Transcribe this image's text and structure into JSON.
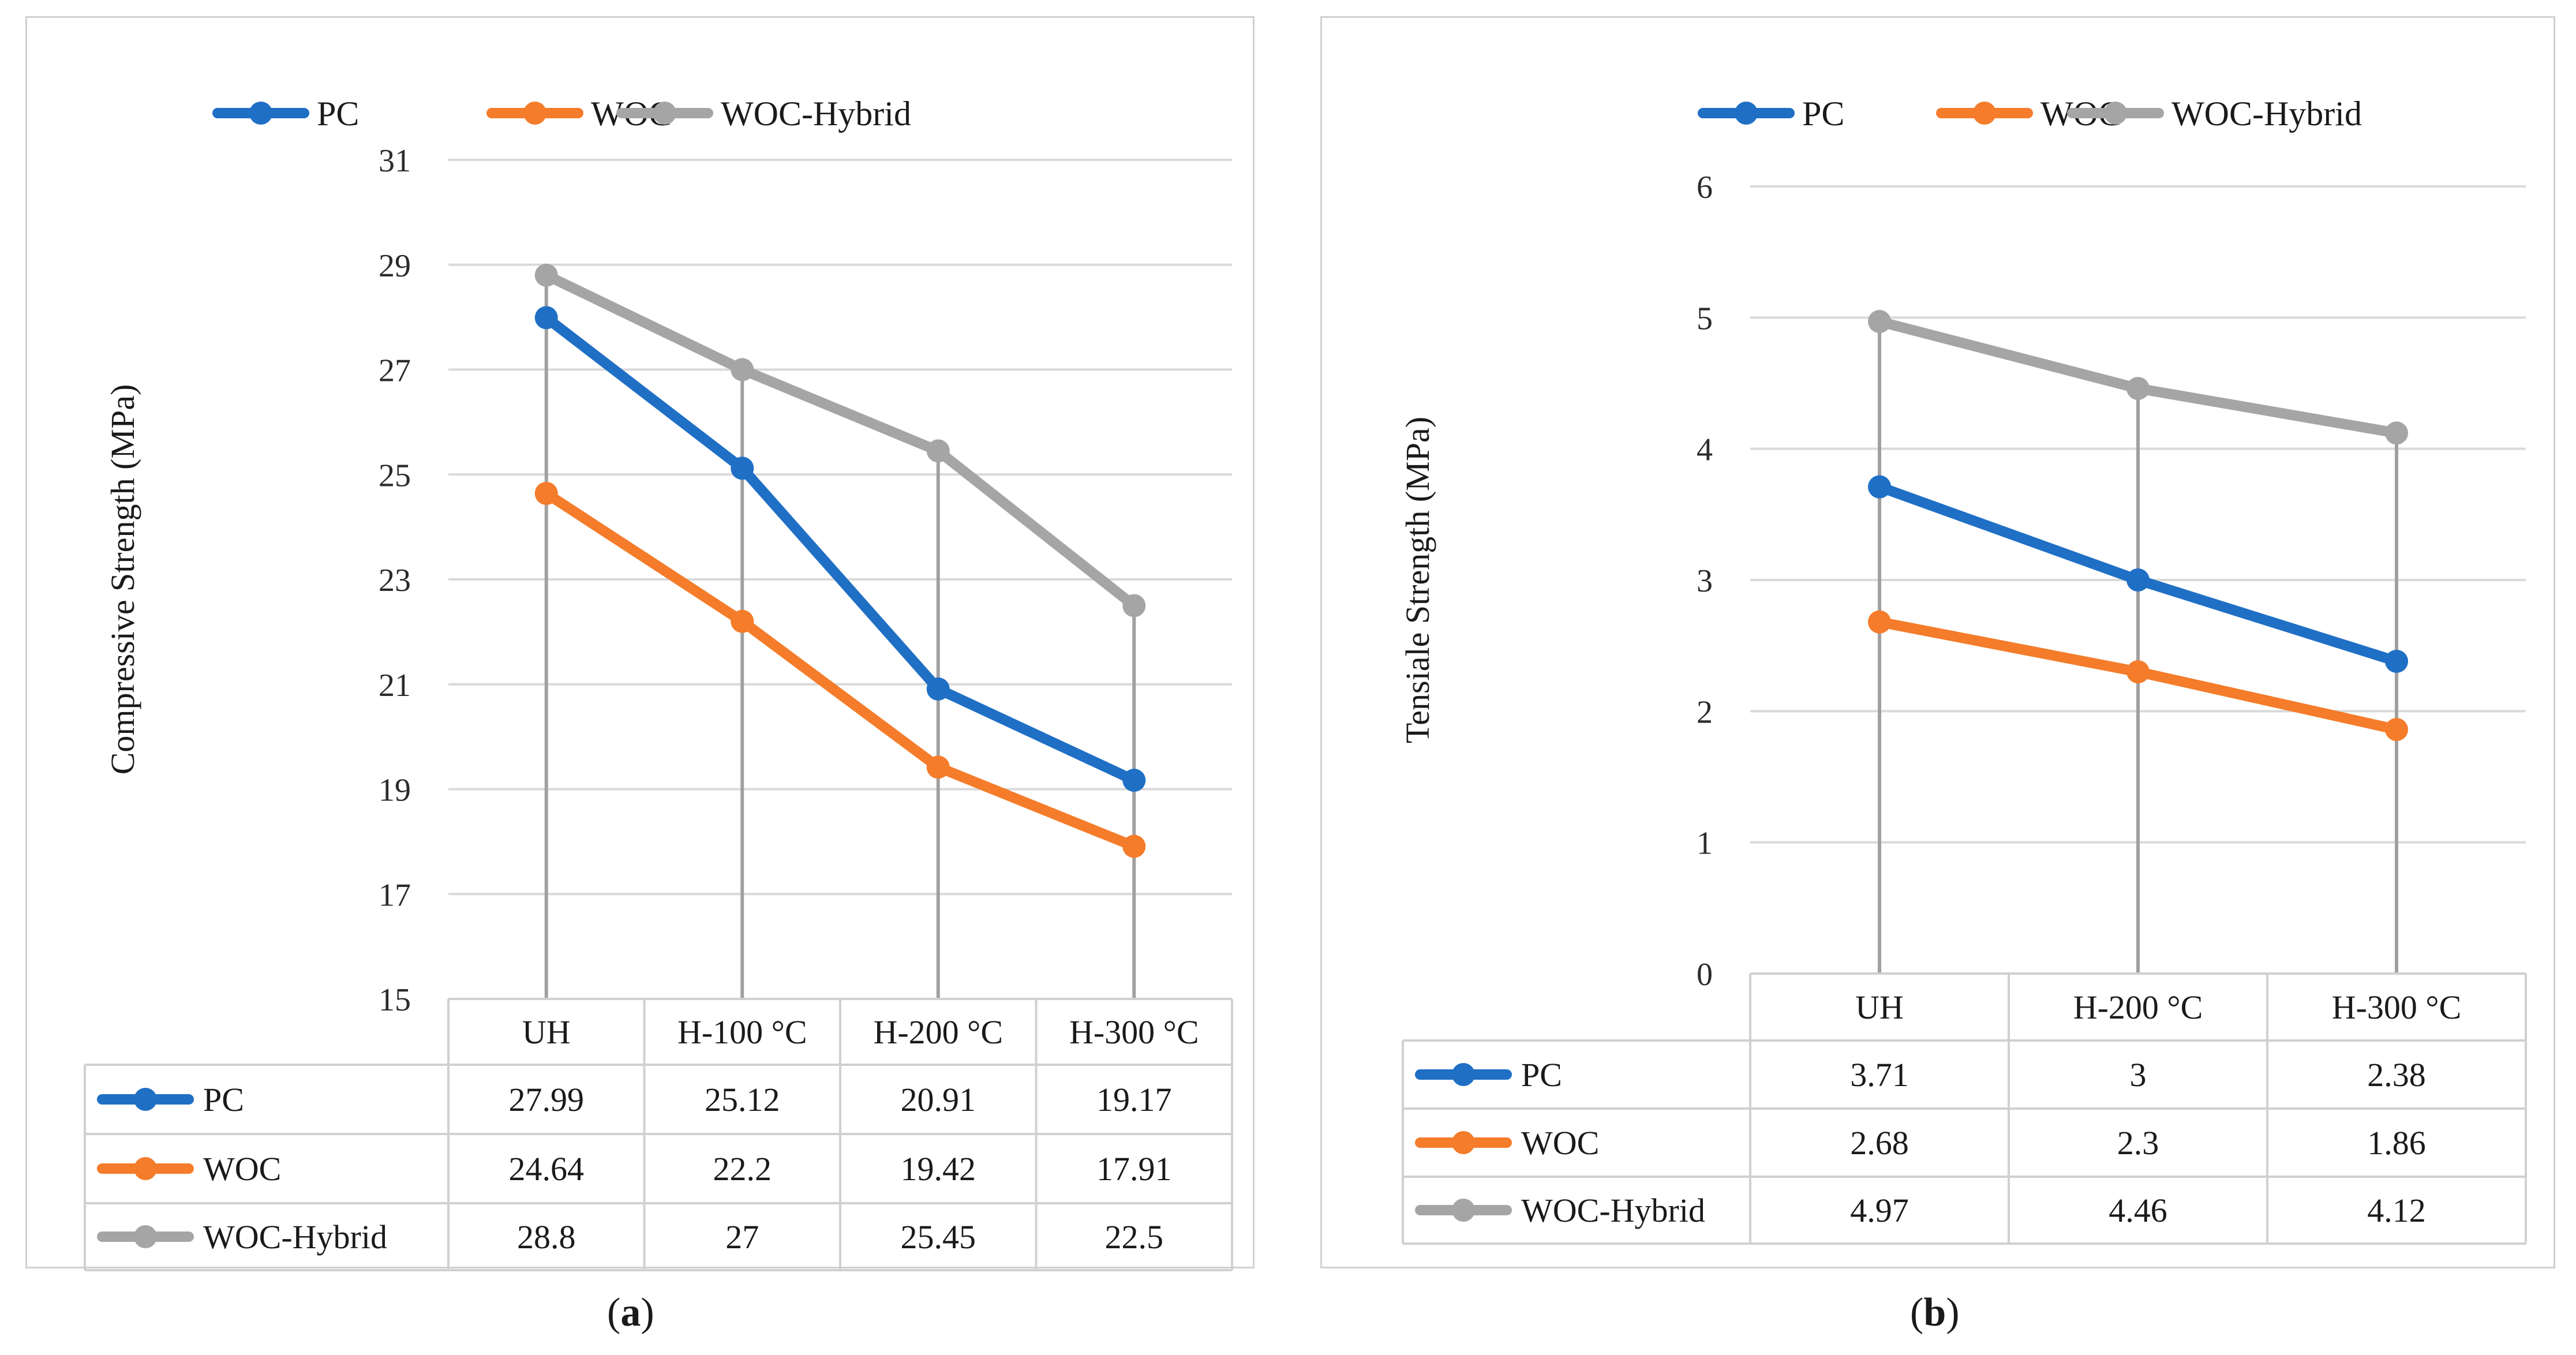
{
  "colors": {
    "PC": "#1f6fc5",
    "WOC": "#f47c2a",
    "WOC-Hybrid": "#a5a5a5",
    "grid": "#d9d9d9",
    "drop": "#a0a0a0"
  },
  "chart_data": [
    {
      "type": "line",
      "panel": "a",
      "caption_letter": "a",
      "ylabel": "Compressive Strength (MPa)",
      "ylim": [
        15,
        31
      ],
      "yticks": [
        15,
        17,
        19,
        21,
        23,
        25,
        27,
        29,
        31
      ],
      "categories": [
        "UH",
        "H-100 °C",
        "H-200 °C",
        "H-300 °C"
      ],
      "series": [
        {
          "name": "PC",
          "values": [
            27.99,
            25.12,
            20.91,
            19.17
          ],
          "labels": [
            "27.99",
            "25.12",
            "20.91",
            "19.17"
          ]
        },
        {
          "name": "WOC",
          "values": [
            24.64,
            22.2,
            19.42,
            17.91
          ],
          "labels": [
            "24.64",
            "22.2",
            "19.42",
            "17.91"
          ]
        },
        {
          "name": "WOC-Hybrid",
          "values": [
            28.8,
            27,
            25.45,
            22.5
          ],
          "labels": [
            "28.8",
            "27",
            "25.45",
            "22.5"
          ]
        }
      ],
      "legend_position": "top-center",
      "data_table": true,
      "drop_lines": true
    },
    {
      "type": "line",
      "panel": "b",
      "caption_letter": "b",
      "ylabel": "Tensiale Strength (MPa)",
      "ylim": [
        0,
        6
      ],
      "yticks": [
        0,
        1,
        2,
        3,
        4,
        5,
        6
      ],
      "categories": [
        "UH",
        "H-200 °C",
        "H-300 °C"
      ],
      "series": [
        {
          "name": "PC",
          "values": [
            3.71,
            3,
            2.38
          ],
          "labels": [
            "3.71",
            "3",
            "2.38"
          ]
        },
        {
          "name": "WOC",
          "values": [
            2.68,
            2.3,
            1.86
          ],
          "labels": [
            "2.68",
            "2.3",
            "1.86"
          ]
        },
        {
          "name": "WOC-Hybrid",
          "values": [
            4.97,
            4.46,
            4.12
          ],
          "labels": [
            "4.97",
            "4.46",
            "4.12"
          ]
        }
      ],
      "legend_position": "top-center",
      "data_table": true,
      "drop_lines": true
    }
  ]
}
